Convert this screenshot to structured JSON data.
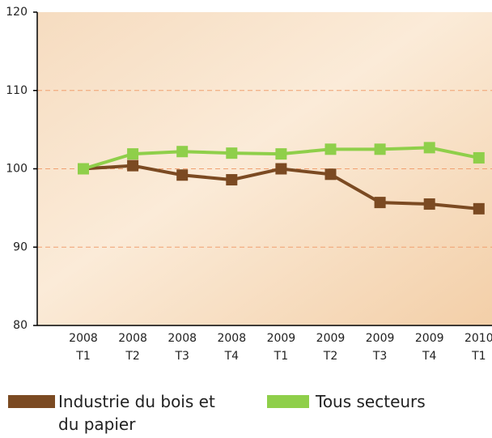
{
  "chart_data": {
    "type": "line",
    "categories": [
      [
        "2008",
        "T1"
      ],
      [
        "2008",
        "T2"
      ],
      [
        "2008",
        "T3"
      ],
      [
        "2008",
        "T4"
      ],
      [
        "2009",
        "T1"
      ],
      [
        "2009",
        "T2"
      ],
      [
        "2009",
        "T3"
      ],
      [
        "2009",
        "T4"
      ],
      [
        "2010",
        "T1"
      ]
    ],
    "series": [
      {
        "name": "Industrie du bois et du papier",
        "color": "#7b4a22",
        "values": [
          100,
          100.4,
          99.2,
          98.6,
          100,
          99.3,
          95.7,
          95.5,
          94.9
        ]
      },
      {
        "name": "Tous secteurs",
        "color": "#8fcf4a",
        "values": [
          100,
          101.9,
          102.2,
          102,
          101.9,
          102.5,
          102.5,
          102.7,
          101.4
        ]
      }
    ],
    "ylim": [
      80,
      120
    ],
    "yticks": [
      80,
      90,
      100,
      110,
      120
    ],
    "grid": true
  }
}
